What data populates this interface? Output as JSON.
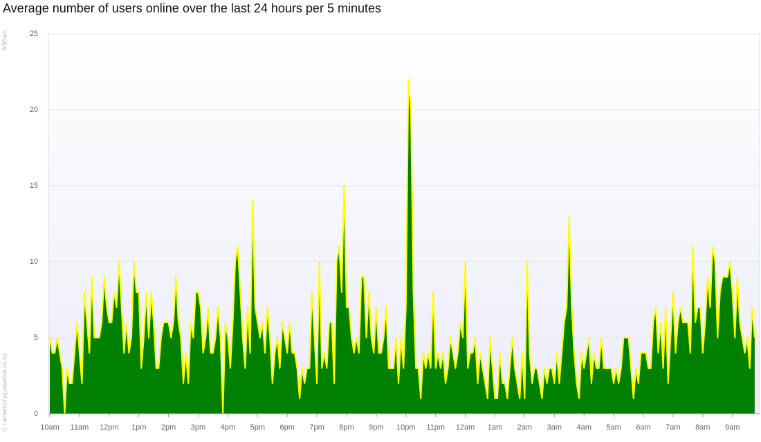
{
  "chart_data": {
    "type": "area",
    "title": "Average number of users online over the last 24 hours per 5 minutes",
    "timestamp": "9:55am",
    "credit": "© canterburyquakelive.co.nz",
    "fill_color": "#008000",
    "line_color": "#ffff00",
    "grid": true,
    "ylim": [
      0,
      25
    ],
    "yticks": [
      0,
      5,
      10,
      15,
      20,
      25
    ],
    "xlim": [
      0,
      287
    ],
    "xticks": [
      {
        "value": 0,
        "label": "10am"
      },
      {
        "value": 12,
        "label": "11am"
      },
      {
        "value": 24,
        "label": "12pm"
      },
      {
        "value": 36,
        "label": "1pm"
      },
      {
        "value": 48,
        "label": "2pm"
      },
      {
        "value": 60,
        "label": "3pm"
      },
      {
        "value": 72,
        "label": "4pm"
      },
      {
        "value": 84,
        "label": "5pm"
      },
      {
        "value": 96,
        "label": "6pm"
      },
      {
        "value": 108,
        "label": "7pm"
      },
      {
        "value": 120,
        "label": "8pm"
      },
      {
        "value": 132,
        "label": "9pm"
      },
      {
        "value": 144,
        "label": "10pm"
      },
      {
        "value": 156,
        "label": "11pm"
      },
      {
        "value": 168,
        "label": "12am"
      },
      {
        "value": 180,
        "label": "1am"
      },
      {
        "value": 192,
        "label": "2am"
      },
      {
        "value": 204,
        "label": "3am"
      },
      {
        "value": 216,
        "label": "4am"
      },
      {
        "value": 228,
        "label": "5am"
      },
      {
        "value": 240,
        "label": "6am"
      },
      {
        "value": 252,
        "label": "7am"
      },
      {
        "value": 264,
        "label": "8am"
      },
      {
        "value": 276,
        "label": "9am"
      }
    ],
    "values": [
      5,
      4,
      4,
      5,
      4,
      3,
      0,
      3,
      2,
      2,
      4,
      6,
      4,
      2,
      8,
      6,
      4,
      9,
      5,
      5,
      5,
      6,
      9,
      7,
      6,
      6,
      8,
      7,
      10,
      7,
      4,
      6,
      4,
      5,
      10,
      8,
      8,
      3,
      5,
      8,
      5,
      8,
      6,
      3,
      3,
      5,
      6,
      6,
      6,
      5,
      6,
      9,
      6,
      5,
      2,
      4,
      2,
      6,
      5,
      8,
      8,
      7,
      4,
      5,
      7,
      4,
      4,
      5,
      7,
      5,
      0,
      6,
      5,
      3,
      6,
      10,
      11,
      8,
      5,
      3,
      7,
      4,
      14,
      7,
      6,
      5,
      6,
      4,
      7,
      5,
      2,
      4,
      5,
      3,
      6,
      5,
      4,
      6,
      4,
      4,
      3,
      1,
      3,
      2,
      3,
      3,
      8,
      5,
      2,
      10,
      3,
      4,
      3,
      6,
      6,
      2,
      10,
      11,
      8,
      15,
      7,
      7,
      5,
      4,
      5,
      4,
      9,
      9,
      5,
      8,
      5,
      4,
      7,
      4,
      4,
      5,
      7,
      3,
      3,
      3,
      5,
      2,
      5,
      3,
      7,
      22,
      20,
      8,
      3,
      3,
      1,
      4,
      3,
      4,
      3,
      8,
      3,
      4,
      3,
      4,
      2,
      3,
      5,
      4,
      3,
      4,
      6,
      5,
      10,
      3,
      4,
      4,
      5,
      2,
      4,
      3,
      2,
      1,
      5,
      3,
      1,
      1,
      4,
      2,
      2,
      1,
      3,
      5,
      3,
      2,
      1,
      4,
      1,
      10,
      4,
      2,
      3,
      3,
      2,
      1,
      3,
      2,
      3,
      3,
      2,
      4,
      2,
      4,
      6,
      7,
      13,
      7,
      4,
      2,
      1,
      4,
      3,
      4,
      5,
      2,
      4,
      3,
      3,
      5,
      3,
      3,
      3,
      3,
      2,
      3,
      2,
      3,
      5,
      5,
      5,
      3,
      1,
      3,
      2,
      4,
      4,
      4,
      3,
      3,
      6,
      7,
      4,
      6,
      3,
      7,
      2,
      5,
      8,
      4,
      6,
      7,
      6,
      6,
      6,
      4,
      11,
      6,
      7,
      7,
      4,
      6,
      9,
      7,
      11,
      10,
      5,
      8,
      9,
      9,
      9,
      10,
      8,
      5,
      9,
      6,
      5,
      4,
      5,
      3,
      7,
      5
    ]
  }
}
